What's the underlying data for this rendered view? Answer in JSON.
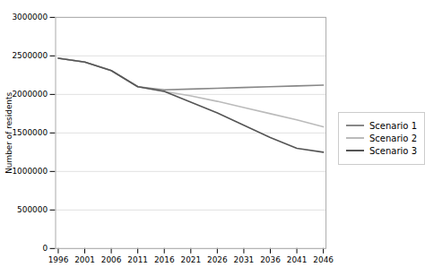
{
  "chart_data": {
    "type": "line",
    "x": [
      1996,
      2001,
      2006,
      2011,
      2016,
      2021,
      2026,
      2031,
      2036,
      2041,
      2046
    ],
    "series": [
      {
        "name": "Scenario 1",
        "color": "#888888",
        "values": [
          2470000,
          2420000,
          2310000,
          2100000,
          2060000,
          2070000,
          2080000,
          2090000,
          2100000,
          2110000,
          2120000
        ]
      },
      {
        "name": "Scenario 2",
        "color": "#bbbbbb",
        "values": [
          2470000,
          2420000,
          2310000,
          2100000,
          2040000,
          1980000,
          1910000,
          1830000,
          1750000,
          1670000,
          1580000
        ]
      },
      {
        "name": "Scenario 3",
        "color": "#555555",
        "values": [
          2470000,
          2420000,
          2310000,
          2100000,
          2040000,
          1900000,
          1760000,
          1600000,
          1440000,
          1300000,
          1250000
        ]
      }
    ],
    "ylabel": "Number of residents",
    "xlim": [
      1995.5,
      2046.5
    ],
    "xticks": [
      1996,
      2001,
      2006,
      2011,
      2016,
      2021,
      2026,
      2031,
      2036,
      2041,
      2046
    ],
    "ylim": [
      0,
      3000000
    ],
    "yticks": [
      0,
      500000,
      1000000,
      1500000,
      2000000,
      2500000,
      3000000
    ],
    "grid": true,
    "legend": "right"
  }
}
